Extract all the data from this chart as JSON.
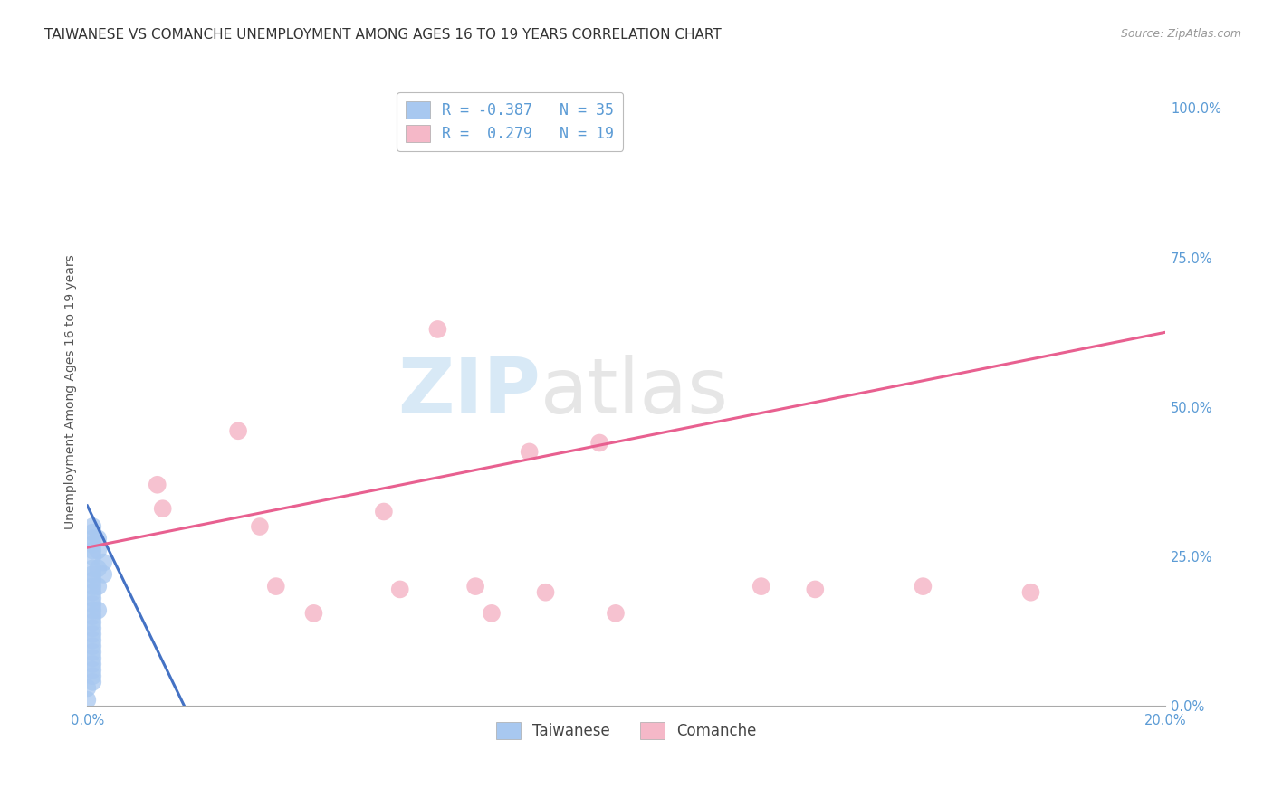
{
  "title": "TAIWANESE VS COMANCHE UNEMPLOYMENT AMONG AGES 16 TO 19 YEARS CORRELATION CHART",
  "source": "Source: ZipAtlas.com",
  "ylabel": "Unemployment Among Ages 16 to 19 years",
  "watermark_zip": "ZIP",
  "watermark_atlas": "atlas",
  "legend_line1": "R = -0.387   N = 35",
  "legend_line2": "R =  0.279   N = 19",
  "taiwanese_color": "#a8c8f0",
  "comanche_color": "#f5b8c8",
  "taiwanese_line_color": "#4472c4",
  "comanche_line_color": "#e86090",
  "grid_color": "#cccccc",
  "background_color": "#ffffff",
  "title_fontsize": 11,
  "source_fontsize": 9,
  "axis_label_fontsize": 10,
  "tick_fontsize": 10.5,
  "legend_fontsize": 12,
  "scatter_size": 200,
  "taiwanese_scatter_x": [
    0.001,
    0.001,
    0.001,
    0.001,
    0.001,
    0.001,
    0.001,
    0.001,
    0.001,
    0.001,
    0.001,
    0.001,
    0.001,
    0.001,
    0.001,
    0.001,
    0.001,
    0.001,
    0.001,
    0.001,
    0.001,
    0.001,
    0.001,
    0.001,
    0.001,
    0.001,
    0.002,
    0.002,
    0.002,
    0.002,
    0.002,
    0.003,
    0.003,
    0.0,
    0.0
  ],
  "taiwanese_scatter_y": [
    0.3,
    0.29,
    0.28,
    0.27,
    0.26,
    0.25,
    0.23,
    0.22,
    0.21,
    0.2,
    0.19,
    0.18,
    0.17,
    0.16,
    0.15,
    0.14,
    0.13,
    0.12,
    0.11,
    0.1,
    0.09,
    0.08,
    0.07,
    0.06,
    0.05,
    0.04,
    0.28,
    0.26,
    0.23,
    0.2,
    0.16,
    0.24,
    0.22,
    0.03,
    0.01
  ],
  "comanche_scatter_x": [
    0.013,
    0.014,
    0.028,
    0.032,
    0.035,
    0.042,
    0.055,
    0.058,
    0.065,
    0.072,
    0.075,
    0.082,
    0.085,
    0.095,
    0.098,
    0.125,
    0.135,
    0.155,
    0.175
  ],
  "comanche_scatter_y": [
    0.37,
    0.33,
    0.46,
    0.3,
    0.2,
    0.155,
    0.325,
    0.195,
    0.63,
    0.2,
    0.155,
    0.425,
    0.19,
    0.44,
    0.155,
    0.2,
    0.195,
    0.2,
    0.19
  ],
  "taiwanese_line_x": [
    0.0,
    0.018
  ],
  "taiwanese_line_y": [
    0.335,
    0.0
  ],
  "comanche_line_x": [
    0.0,
    0.2
  ],
  "comanche_line_y": [
    0.265,
    0.625
  ],
  "xlim": [
    0.0,
    0.2
  ],
  "ylim": [
    0.0,
    1.05
  ],
  "right_yticks": [
    0.0,
    0.25,
    0.5,
    0.75,
    1.0
  ],
  "right_yticklabels": [
    "0.0%",
    "25.0%",
    "50.0%",
    "75.0%",
    "100.0%"
  ],
  "bottom_xticks": [
    0.0,
    0.04,
    0.08,
    0.12,
    0.16,
    0.2
  ],
  "bottom_xticklabels": [
    "0.0%",
    "",
    "",
    "",
    "",
    "20.0%"
  ]
}
